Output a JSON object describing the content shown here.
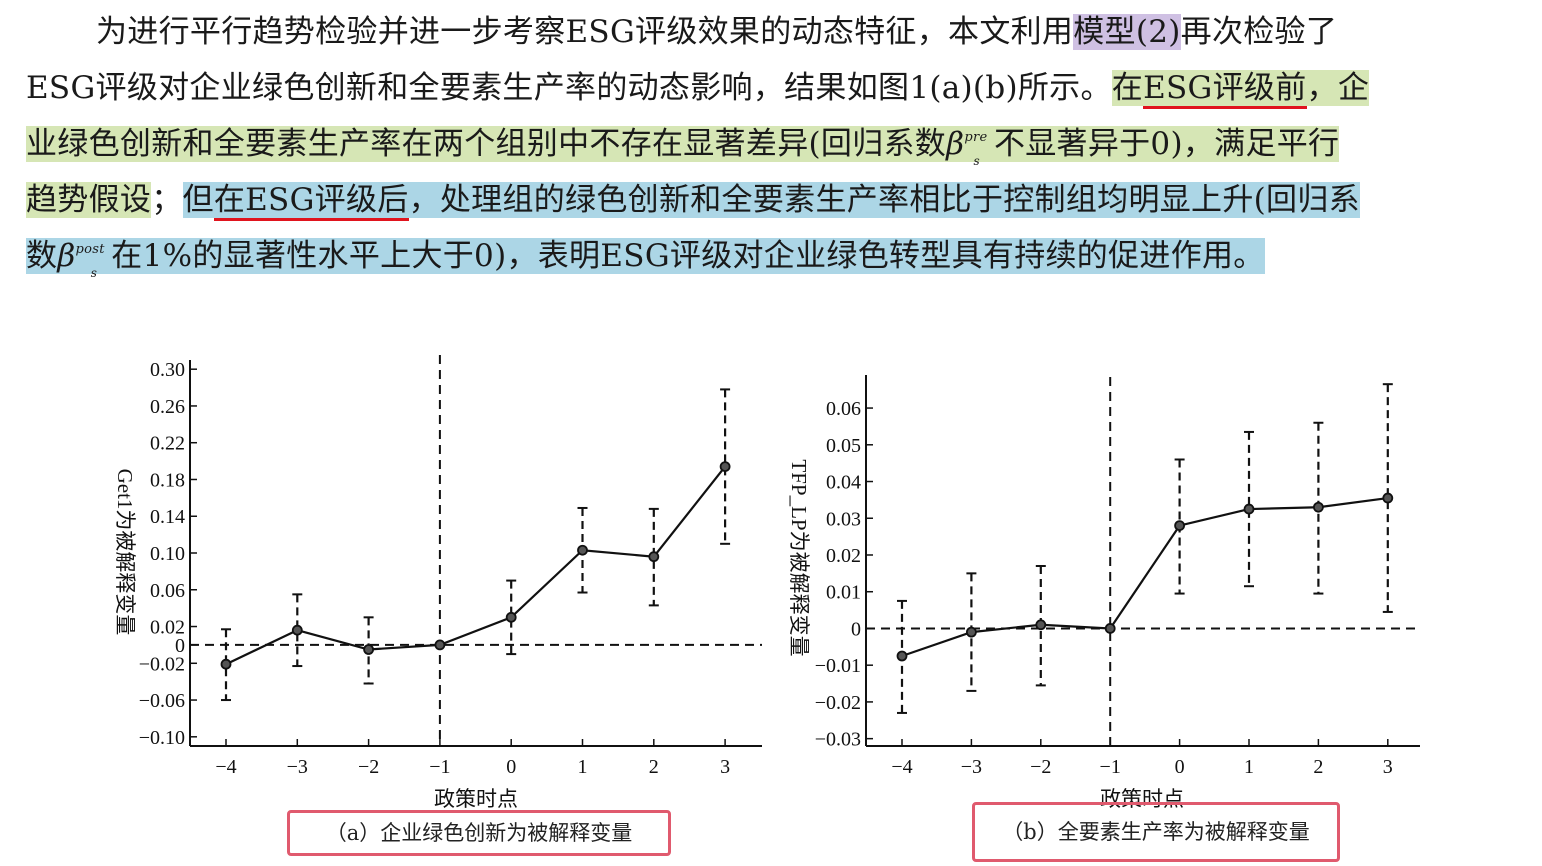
{
  "paragraph": {
    "line1": {
      "a": "为进行平行趋势检验并进一步考察ESG评级效果的动态特征，本文利用",
      "b": "模型(2)",
      "c": "再次检验了"
    },
    "line2": {
      "a": "ESG评级对企业绿色创新和全要素生产率的动态影响，结果如图1(a)(b)所示。",
      "b": "在",
      "c": "ESG评级前",
      "d": "，企"
    },
    "line3": {
      "a": "业绿色创新和全要素生产率在两个组别中不存在显著差异(回归系数",
      "beta": "β",
      "sup": "pre",
      "sub": "s",
      "b": "不显著异于0)，满足平行"
    },
    "line4": {
      "a": "趋势假设",
      "b": "；",
      "c": "但",
      "d": "在ESG评级后",
      "e": "，处理组的绿色创新和全要素生产率相比于控制组均明显上升(回归系"
    },
    "line5": {
      "a": "数",
      "beta": "β",
      "sup": "post",
      "sub": "s",
      "b": "在1%的显著性水平上大于0)，表明ESG评级对企业绿色转型具有持续的促进作用。"
    }
  },
  "highlight_colors": {
    "purple": "#cfc0e3",
    "green": "#d6e6b5",
    "blue": "#acd6e6",
    "underline": "#e0141e",
    "caption_border": "#e05a6e"
  },
  "chart_data": [
    {
      "type": "line",
      "xlabel": "政策时点",
      "ylabel": "Get1为被解释变量",
      "caption": "（a）企业绿色创新为被解释变量",
      "x": [
        -4,
        -3,
        -2,
        -1,
        0,
        1,
        2,
        3
      ],
      "x_ticks": [
        "−4",
        "−3",
        "−2",
        "−1",
        "0",
        "1",
        "2",
        "3"
      ],
      "values": [
        -0.021,
        0.016,
        -0.005,
        0.0,
        0.03,
        0.103,
        0.096,
        0.194
      ],
      "ci_low": [
        -0.06,
        -0.023,
        -0.042,
        0.0,
        -0.01,
        0.057,
        0.043,
        0.11
      ],
      "ci_high": [
        0.017,
        0.055,
        0.03,
        0.0,
        0.07,
        0.149,
        0.148,
        0.278
      ],
      "ylim": [
        -0.11,
        0.31
      ],
      "y_ticks": [
        0.3,
        0.26,
        0.22,
        0.18,
        0.14,
        0.1,
        0.06,
        0.02,
        0,
        -0.02,
        -0.06,
        -0.1
      ],
      "y_tick_labels": [
        "0.30",
        "0.26",
        "0.22",
        "0.18",
        "0.14",
        "0.10",
        "0.06",
        "0.02",
        "0",
        "−0.02",
        "−0.06",
        "−0.10"
      ],
      "reference_lines": {
        "y": 0,
        "x": -1
      },
      "grid": false
    },
    {
      "type": "line",
      "xlabel": "政策时点",
      "ylabel": "TFP_LP为被解释变量",
      "caption": "（b）全要素生产率为被解释变量",
      "x": [
        -4,
        -3,
        -2,
        -1,
        0,
        1,
        2,
        3
      ],
      "x_ticks": [
        "−4",
        "−3",
        "−2",
        "−1",
        "0",
        "1",
        "2",
        "3"
      ],
      "values": [
        -0.0075,
        -0.001,
        0.001,
        0.0,
        0.028,
        0.0325,
        0.033,
        0.0355
      ],
      "ci_low": [
        -0.023,
        -0.017,
        -0.0155,
        0.0,
        0.0095,
        0.0115,
        0.0095,
        0.0045
      ],
      "ci_high": [
        0.0075,
        0.015,
        0.017,
        0.0,
        0.046,
        0.0535,
        0.056,
        0.0665
      ],
      "ylim": [
        -0.032,
        0.069
      ],
      "y_ticks": [
        0.06,
        0.05,
        0.04,
        0.03,
        0.02,
        0.01,
        0,
        -0.01,
        -0.02,
        -0.03
      ],
      "y_tick_labels": [
        "0.06",
        "0.05",
        "0.04",
        "0.03",
        "0.02",
        "0.01",
        "0",
        "−0.01",
        "−0.02",
        "−0.03"
      ],
      "reference_lines": {
        "y": 0,
        "x": -1
      },
      "grid": false
    }
  ]
}
